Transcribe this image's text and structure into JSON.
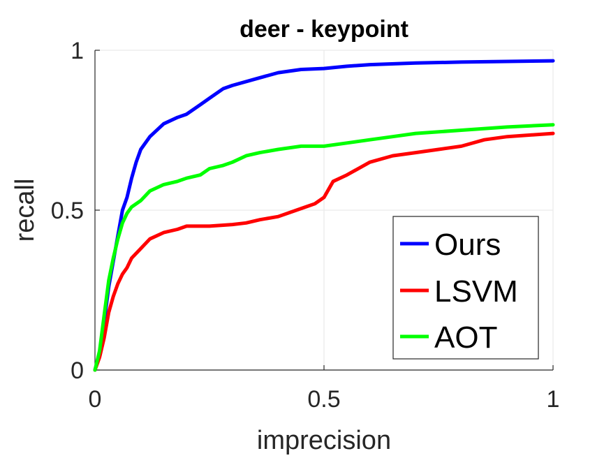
{
  "chart_data": {
    "type": "line",
    "title": "deer - keypoint",
    "xlabel": "imprecision",
    "ylabel": "recall",
    "xlim": [
      0,
      1
    ],
    "ylim": [
      0,
      1
    ],
    "xticks": [
      "0",
      "0.5",
      "1"
    ],
    "yticks": [
      "0",
      "0.5",
      "1"
    ],
    "grid": true,
    "legend_position": "bottom-right",
    "series": [
      {
        "name": "Ours",
        "color": "#0000ff",
        "x": [
          0,
          0.01,
          0.02,
          0.03,
          0.04,
          0.05,
          0.06,
          0.07,
          0.08,
          0.09,
          0.1,
          0.12,
          0.15,
          0.18,
          0.2,
          0.23,
          0.25,
          0.28,
          0.3,
          0.35,
          0.4,
          0.45,
          0.5,
          0.55,
          0.6,
          0.7,
          0.8,
          0.9,
          1.0
        ],
        "y": [
          0,
          0.05,
          0.15,
          0.26,
          0.34,
          0.42,
          0.5,
          0.54,
          0.6,
          0.65,
          0.69,
          0.73,
          0.77,
          0.79,
          0.8,
          0.83,
          0.85,
          0.88,
          0.89,
          0.91,
          0.93,
          0.94,
          0.943,
          0.95,
          0.955,
          0.96,
          0.963,
          0.965,
          0.967
        ]
      },
      {
        "name": "LSVM",
        "color": "#ff0000",
        "x": [
          0,
          0.01,
          0.02,
          0.03,
          0.04,
          0.05,
          0.06,
          0.07,
          0.08,
          0.1,
          0.12,
          0.15,
          0.18,
          0.2,
          0.25,
          0.3,
          0.33,
          0.36,
          0.4,
          0.44,
          0.46,
          0.48,
          0.5,
          0.52,
          0.55,
          0.6,
          0.65,
          0.7,
          0.75,
          0.8,
          0.85,
          0.9,
          1.0
        ],
        "y": [
          0,
          0.04,
          0.1,
          0.18,
          0.23,
          0.27,
          0.3,
          0.32,
          0.35,
          0.38,
          0.41,
          0.43,
          0.44,
          0.45,
          0.45,
          0.455,
          0.46,
          0.47,
          0.48,
          0.5,
          0.51,
          0.52,
          0.54,
          0.59,
          0.61,
          0.65,
          0.67,
          0.68,
          0.69,
          0.7,
          0.72,
          0.73,
          0.74
        ]
      },
      {
        "name": "AOT",
        "color": "#00ff00",
        "x": [
          0,
          0.01,
          0.02,
          0.03,
          0.04,
          0.05,
          0.06,
          0.07,
          0.08,
          0.1,
          0.12,
          0.15,
          0.18,
          0.2,
          0.23,
          0.25,
          0.28,
          0.3,
          0.33,
          0.36,
          0.4,
          0.45,
          0.5,
          0.55,
          0.6,
          0.65,
          0.7,
          0.8,
          0.9,
          1.0
        ],
        "y": [
          0,
          0.06,
          0.17,
          0.28,
          0.35,
          0.41,
          0.46,
          0.49,
          0.51,
          0.53,
          0.56,
          0.58,
          0.59,
          0.6,
          0.61,
          0.63,
          0.64,
          0.65,
          0.67,
          0.68,
          0.69,
          0.7,
          0.7,
          0.71,
          0.72,
          0.73,
          0.74,
          0.75,
          0.76,
          0.767
        ]
      }
    ]
  }
}
